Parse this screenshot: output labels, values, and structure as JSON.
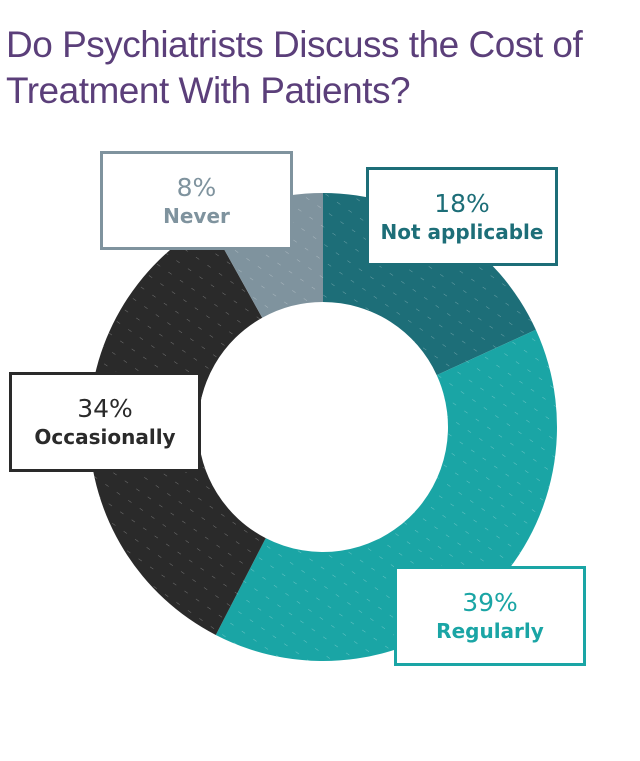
{
  "title": "Do Psychiatrists Discuss the Cost of Treatment With Patients?",
  "chart_data": {
    "type": "pie",
    "title": "Do Psychiatrists Discuss the Cost of Treatment With Patients?",
    "donut": true,
    "slices": [
      {
        "label": "Not applicable",
        "value": 18,
        "value_label": "18%",
        "color": "#1d6e78"
      },
      {
        "label": "Regularly",
        "value": 39,
        "value_label": "39%",
        "color": "#1aa5a5"
      },
      {
        "label": "Occasionally",
        "value": 34,
        "value_label": "34%",
        "color": "#2a2a2a"
      },
      {
        "label": "Never",
        "value": 8,
        "value_label": "8%",
        "color": "#7f939e"
      }
    ]
  }
}
